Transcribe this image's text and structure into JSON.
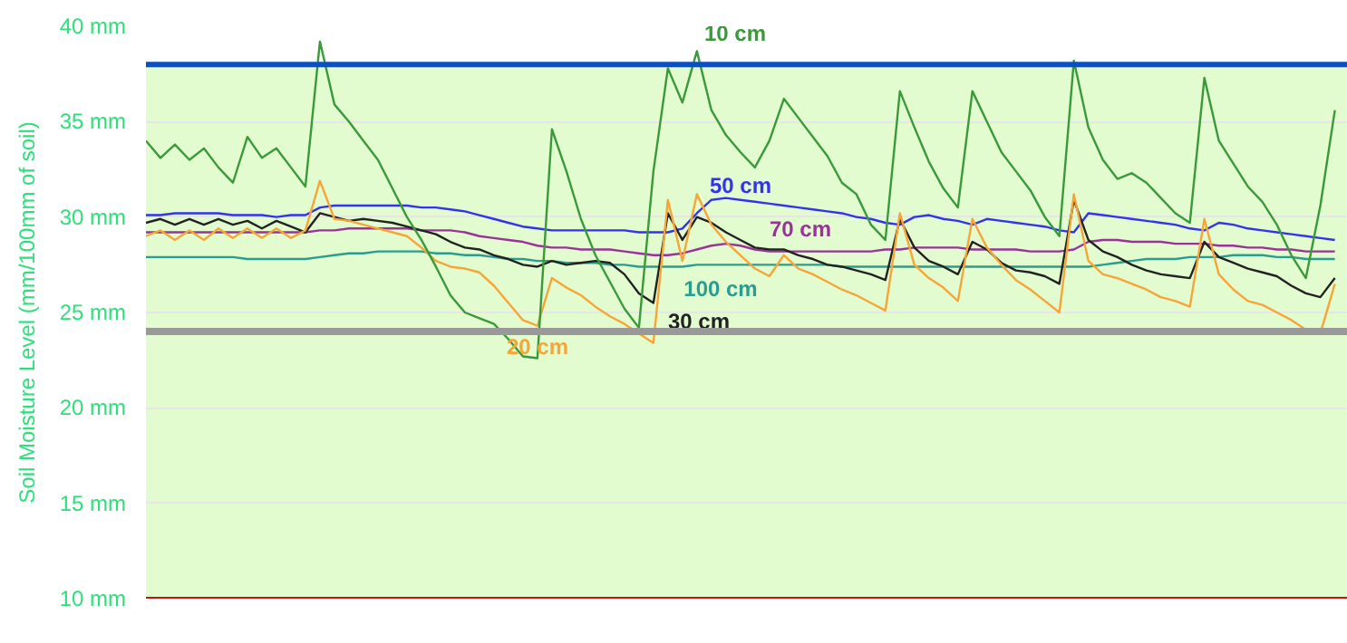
{
  "chart_data": {
    "type": "line",
    "ylabel": "Soil Moisture Level (mm/100mm of soil)",
    "categories": [
      null,
      null,
      null,
      null,
      null,
      null,
      null,
      null,
      null,
      null,
      null,
      null,
      null,
      null,
      null,
      null,
      null,
      null,
      null,
      null,
      null,
      null,
      null,
      null,
      null,
      null,
      null,
      null,
      null,
      null,
      null,
      null,
      null,
      null,
      null,
      null,
      null,
      null,
      null,
      null,
      null,
      null,
      null,
      null,
      null,
      null,
      null,
      null,
      null,
      null,
      null,
      null,
      null,
      null,
      null,
      null,
      null,
      null,
      null,
      null,
      null,
      null,
      null,
      null,
      null,
      null,
      null,
      null,
      null,
      null,
      null,
      null,
      null,
      null,
      null,
      null,
      null,
      null,
      null,
      null,
      null,
      null,
      null
    ],
    "ylim": [
      10,
      40
    ],
    "yticks": [
      {
        "value": 10,
        "label": "10 mm"
      },
      {
        "value": 15,
        "label": "15 mm"
      },
      {
        "value": 20,
        "label": "20 mm"
      },
      {
        "value": 25,
        "label": "25 mm"
      },
      {
        "value": 30,
        "label": "30 mm"
      },
      {
        "value": 35,
        "label": "35 mm"
      },
      {
        "value": 40,
        "label": "40 mm"
      }
    ],
    "tick_labels": "y",
    "grid": "y",
    "bands": [
      {
        "axis": "y",
        "from": 10,
        "to": 38,
        "color": "#e2fcd0"
      }
    ],
    "ref_lines": [
      {
        "axis": "y",
        "value": 38,
        "color": "#0a4fc4"
      },
      {
        "axis": "y",
        "value": 24,
        "color": "#999999"
      },
      {
        "axis": "y",
        "value": 10,
        "color": "#cc1111"
      }
    ],
    "series": [
      {
        "name": "100 cm",
        "color": "#2a9d8f",
        "values": [
          27.9,
          27.9,
          27.9,
          27.9,
          27.9,
          27.9,
          27.9,
          27.8,
          27.8,
          27.8,
          27.8,
          27.8,
          27.9,
          28.0,
          28.1,
          28.1,
          28.2,
          28.2,
          28.2,
          28.2,
          28.1,
          28.1,
          28.0,
          28.0,
          27.9,
          27.8,
          27.8,
          27.7,
          27.7,
          27.6,
          27.6,
          27.6,
          27.5,
          27.5,
          27.4,
          27.4,
          27.4,
          27.4,
          27.5,
          27.5,
          27.5,
          27.5,
          27.5,
          27.5,
          27.5,
          27.5,
          27.5,
          27.5,
          27.4,
          27.4,
          27.4,
          27.4,
          27.4,
          27.4,
          27.4,
          27.4,
          27.4,
          27.4,
          27.4,
          27.4,
          27.4,
          27.4,
          27.4,
          27.4,
          27.4,
          27.4,
          27.5,
          27.6,
          27.7,
          27.8,
          27.8,
          27.8,
          27.9,
          27.9,
          27.9,
          28.0,
          28.0,
          28.0,
          27.9,
          27.9,
          27.8,
          27.8,
          27.8
        ]
      },
      {
        "name": "70 cm",
        "color": "#993399",
        "values": [
          29.2,
          29.2,
          29.2,
          29.2,
          29.2,
          29.2,
          29.2,
          29.2,
          29.2,
          29.2,
          29.2,
          29.2,
          29.3,
          29.3,
          29.4,
          29.4,
          29.4,
          29.4,
          29.4,
          29.3,
          29.3,
          29.3,
          29.2,
          29.0,
          28.9,
          28.8,
          28.7,
          28.5,
          28.4,
          28.4,
          28.3,
          28.3,
          28.3,
          28.2,
          28.1,
          28.0,
          28.0,
          28.1,
          28.3,
          28.5,
          28.6,
          28.5,
          28.3,
          28.2,
          28.2,
          28.2,
          28.2,
          28.2,
          28.2,
          28.2,
          28.2,
          28.3,
          28.3,
          28.4,
          28.4,
          28.4,
          28.4,
          28.3,
          28.3,
          28.3,
          28.3,
          28.2,
          28.2,
          28.2,
          28.3,
          28.7,
          28.8,
          28.8,
          28.7,
          28.7,
          28.7,
          28.6,
          28.6,
          28.6,
          28.5,
          28.5,
          28.4,
          28.4,
          28.3,
          28.3,
          28.2,
          28.2,
          28.2
        ]
      },
      {
        "name": "50 cm",
        "color": "#3333ee",
        "values": [
          30.1,
          30.1,
          30.2,
          30.2,
          30.2,
          30.2,
          30.1,
          30.1,
          30.1,
          30.0,
          30.1,
          30.1,
          30.5,
          30.6,
          30.6,
          30.6,
          30.6,
          30.6,
          30.6,
          30.5,
          30.5,
          30.4,
          30.3,
          30.1,
          29.9,
          29.7,
          29.5,
          29.4,
          29.3,
          29.3,
          29.3,
          29.3,
          29.3,
          29.3,
          29.2,
          29.2,
          29.2,
          29.4,
          30.2,
          30.9,
          31.0,
          30.9,
          30.8,
          30.7,
          30.6,
          30.5,
          30.4,
          30.3,
          30.2,
          30.0,
          29.9,
          29.7,
          29.6,
          30.0,
          30.1,
          29.9,
          29.8,
          29.6,
          29.9,
          29.8,
          29.7,
          29.6,
          29.5,
          29.3,
          29.2,
          30.2,
          30.1,
          30.0,
          29.9,
          29.8,
          29.7,
          29.6,
          29.4,
          29.3,
          29.7,
          29.6,
          29.4,
          29.3,
          29.2,
          29.1,
          29.0,
          28.9,
          28.8
        ]
      },
      {
        "name": "30 cm",
        "color": "#222222",
        "values": [
          29.7,
          29.9,
          29.6,
          29.9,
          29.6,
          29.9,
          29.6,
          29.8,
          29.4,
          29.8,
          29.5,
          29.2,
          30.2,
          30.0,
          29.8,
          29.9,
          29.8,
          29.7,
          29.5,
          29.3,
          29.1,
          28.7,
          28.4,
          28.3,
          28.0,
          27.8,
          27.5,
          27.4,
          27.7,
          27.5,
          27.6,
          27.7,
          27.6,
          27.0,
          26.0,
          25.5,
          30.2,
          28.8,
          30.0,
          29.7,
          29.2,
          28.8,
          28.4,
          28.3,
          28.3,
          28.0,
          27.8,
          27.5,
          27.4,
          27.2,
          27.0,
          26.7,
          29.9,
          28.4,
          27.7,
          27.4,
          27.0,
          28.7,
          28.3,
          27.6,
          27.2,
          27.1,
          26.9,
          26.5,
          30.9,
          28.8,
          28.2,
          27.9,
          27.5,
          27.2,
          27.0,
          26.9,
          26.8,
          28.7,
          27.9,
          27.6,
          27.3,
          27.1,
          26.9,
          26.4,
          26.0,
          25.8,
          26.8
        ]
      },
      {
        "name": "20 cm",
        "color": "#f7a537",
        "values": [
          29.0,
          29.3,
          28.8,
          29.3,
          28.8,
          29.4,
          28.9,
          29.4,
          28.9,
          29.4,
          28.9,
          29.3,
          31.9,
          29.9,
          29.8,
          29.6,
          29.4,
          29.2,
          29.0,
          28.4,
          27.7,
          27.4,
          27.3,
          27.1,
          26.4,
          25.5,
          24.6,
          24.3,
          26.8,
          26.3,
          25.9,
          25.3,
          24.8,
          24.4,
          23.9,
          23.4,
          30.9,
          27.7,
          31.2,
          29.6,
          28.7,
          28.0,
          27.3,
          26.9,
          28.0,
          27.3,
          27.0,
          26.6,
          26.2,
          25.9,
          25.5,
          25.1,
          30.2,
          27.5,
          26.8,
          26.3,
          25.6,
          29.9,
          28.4,
          27.5,
          26.7,
          26.2,
          25.6,
          25.0,
          31.2,
          27.7,
          27.0,
          26.8,
          26.5,
          26.2,
          25.8,
          25.6,
          25.3,
          29.9,
          27.0,
          26.2,
          25.6,
          25.4,
          25.0,
          24.6,
          24.1,
          23.9,
          26.5
        ]
      },
      {
        "name": "10 cm",
        "color": "#3a9a3a",
        "values": [
          34.0,
          33.1,
          33.8,
          33.0,
          33.6,
          32.6,
          31.8,
          34.2,
          33.1,
          33.6,
          32.6,
          31.6,
          39.2,
          35.9,
          35.0,
          34.0,
          33.0,
          31.5,
          30.0,
          28.8,
          27.4,
          25.9,
          25.0,
          24.7,
          24.4,
          23.6,
          22.7,
          22.6,
          34.6,
          32.4,
          29.9,
          28.0,
          26.6,
          25.2,
          24.2,
          32.4,
          37.8,
          36.0,
          38.7,
          35.6,
          34.3,
          33.4,
          32.6,
          34.0,
          36.2,
          35.2,
          34.2,
          33.2,
          31.8,
          31.2,
          29.6,
          28.8,
          36.6,
          34.7,
          32.9,
          31.5,
          30.5,
          36.6,
          35.0,
          33.4,
          32.4,
          31.4,
          30.0,
          29.0,
          38.2,
          34.7,
          33.0,
          32.0,
          32.3,
          31.8,
          31.0,
          30.2,
          29.7,
          37.3,
          34.0,
          32.8,
          31.6,
          30.8,
          29.6,
          28.0,
          26.8,
          30.6,
          35.6
        ]
      }
    ]
  }
}
